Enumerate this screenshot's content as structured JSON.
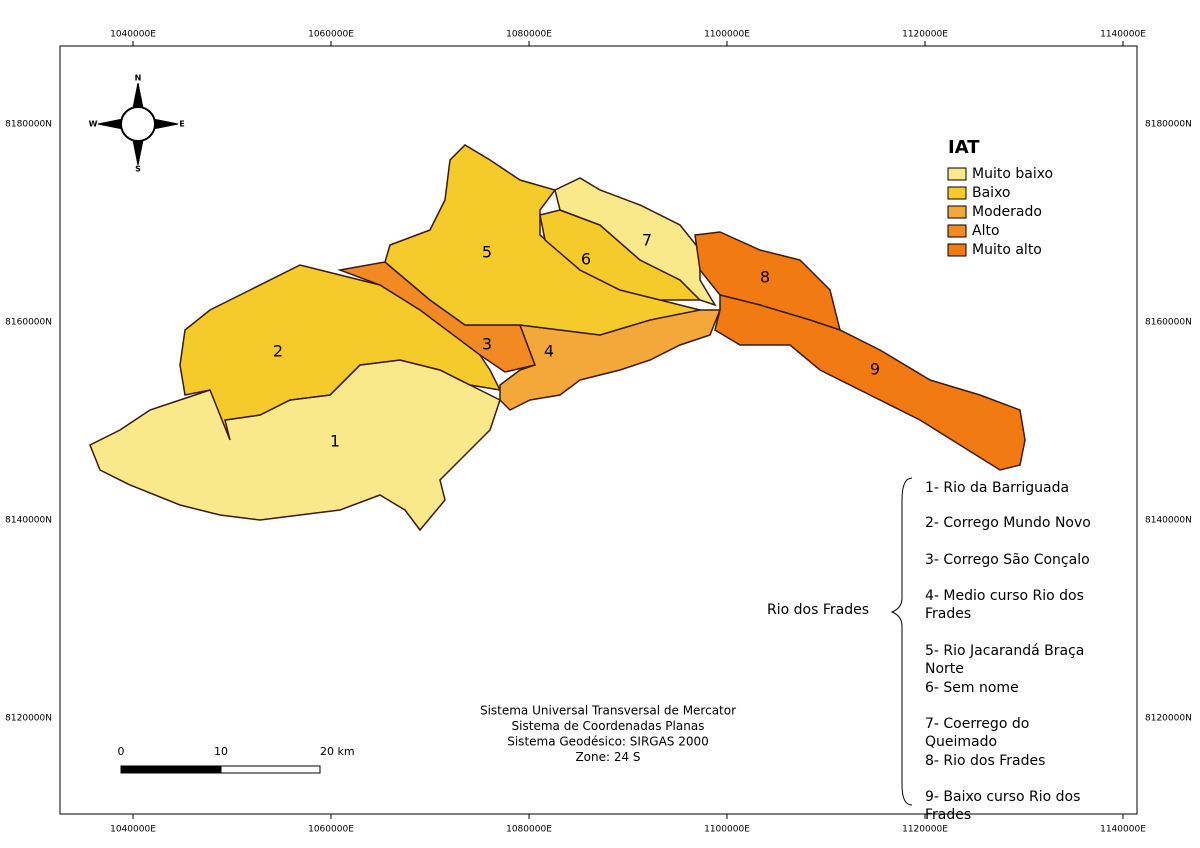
{
  "axes": {
    "x_labels": [
      "1040000E",
      "1060000E",
      "1080000E",
      "1100000E",
      "1120000E",
      "1140000E"
    ],
    "y_labels": [
      "8180000N",
      "8160000N",
      "8140000N",
      "8120000N"
    ]
  },
  "compass": {
    "n": "N",
    "s": "S",
    "e": "E",
    "w": "W"
  },
  "legend": {
    "title": "IAT",
    "items": [
      {
        "label": "Muito baixo",
        "color": "#f9e98a"
      },
      {
        "label": "Baixo",
        "color": "#f5cb2b"
      },
      {
        "label": "Moderado",
        "color": "#f4a83a"
      },
      {
        "label": "Alto",
        "color": "#f28a24"
      },
      {
        "label": "Muito alto",
        "color": "#f27a12"
      }
    ]
  },
  "basins": [
    {
      "label": "1",
      "class": 0
    },
    {
      "label": "2",
      "class": 1
    },
    {
      "label": "3",
      "class": 3
    },
    {
      "label": "4",
      "class": 2
    },
    {
      "label": "5",
      "class": 1
    },
    {
      "label": "6",
      "class": 1
    },
    {
      "label": "7",
      "class": 0
    },
    {
      "label": "8",
      "class": 4
    },
    {
      "label": "9",
      "class": 4
    }
  ],
  "basin_group": "Rio dos Frades",
  "basin_names": [
    "1- Rio da Barriguada",
    "2- Corrego Mundo Novo",
    "3- Corrego São Conçalo",
    "4- Medio curso Rio dos Frades",
    "5- Rio Jacarandá Braça Norte",
    "6-  Sem nome",
    "7- Coerrego do Queimado",
    "8- Rio dos Frades",
    "9- Baixo curso Rio dos Frades"
  ],
  "scale_bar": {
    "labels": [
      "0",
      "10",
      "20 km"
    ]
  },
  "projection": [
    "Sistema Universal Transversal de Mercator",
    "Sistema de Coordenadas Planas",
    "Sistema Geodésico: SIRGAS 2000",
    "Zone:  24 S"
  ]
}
